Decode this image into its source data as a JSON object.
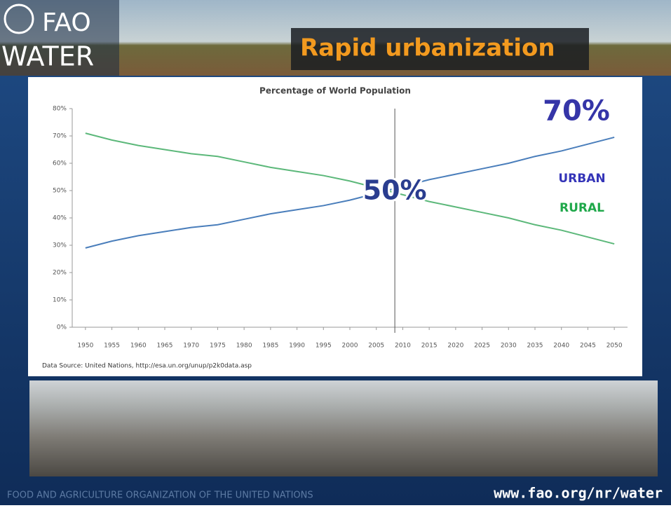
{
  "header": {
    "logo_top": "FAO",
    "logo_bottom": "WATER",
    "title": "Rapid urbanization"
  },
  "chart_data": {
    "type": "line",
    "title": "Percentage of World Population",
    "x": [
      1950,
      1955,
      1960,
      1965,
      1970,
      1975,
      1980,
      1985,
      1990,
      1995,
      2000,
      2005,
      2010,
      2015,
      2020,
      2025,
      2030,
      2035,
      2040,
      2045,
      2050
    ],
    "series": [
      {
        "name": "URBAN",
        "color": "#4a7ebb",
        "label_color": "#3535b8",
        "values": [
          29,
          31.5,
          33.5,
          35,
          36.5,
          37.5,
          39.5,
          41.5,
          43,
          44.5,
          46.5,
          49,
          51.5,
          54,
          56,
          58,
          60,
          62.5,
          64.5,
          67,
          69.5
        ]
      },
      {
        "name": "RURAL",
        "color": "#5cb87a",
        "label_color": "#1fa84a",
        "values": [
          71,
          68.5,
          66.5,
          65,
          63.5,
          62.5,
          60.5,
          58.5,
          57,
          55.5,
          53.5,
          51,
          48.5,
          46,
          44,
          42,
          40,
          37.5,
          35.5,
          33,
          30.5
        ]
      }
    ],
    "xlim": [
      1947.5,
      2052.5
    ],
    "xticks": [
      1950,
      1955,
      1960,
      1965,
      1970,
      1975,
      1980,
      1985,
      1990,
      1995,
      2000,
      2005,
      2010,
      2015,
      2020,
      2025,
      2030,
      2035,
      2040,
      2045,
      2050
    ],
    "ylim": [
      0,
      80
    ],
    "yticks": [
      {
        "value": 0,
        "label": "0%"
      },
      {
        "value": 10,
        "label": "10%"
      },
      {
        "value": 20,
        "label": "20%"
      },
      {
        "value": 30,
        "label": "30%"
      },
      {
        "value": 40,
        "label": "40%"
      },
      {
        "value": 50,
        "label": "50%"
      },
      {
        "value": 60,
        "label": "60%"
      },
      {
        "value": 70,
        "label": "70%"
      },
      {
        "value": 80,
        "label": "80%"
      }
    ],
    "vline": 2008.5,
    "annotations": [
      {
        "text": "70%",
        "x": 2050,
        "y": 76
      },
      {
        "text": "50%",
        "x": 2008.5,
        "y": 52
      }
    ],
    "source": "Data Source: United Nations, http://esa.un.org/unup/p2k0data.asp"
  },
  "footer": {
    "organization": "FOOD AND AGRICULTURE ORGANIZATION OF THE UNITED NATIONS",
    "url": "www.fao.org/nr/water"
  }
}
